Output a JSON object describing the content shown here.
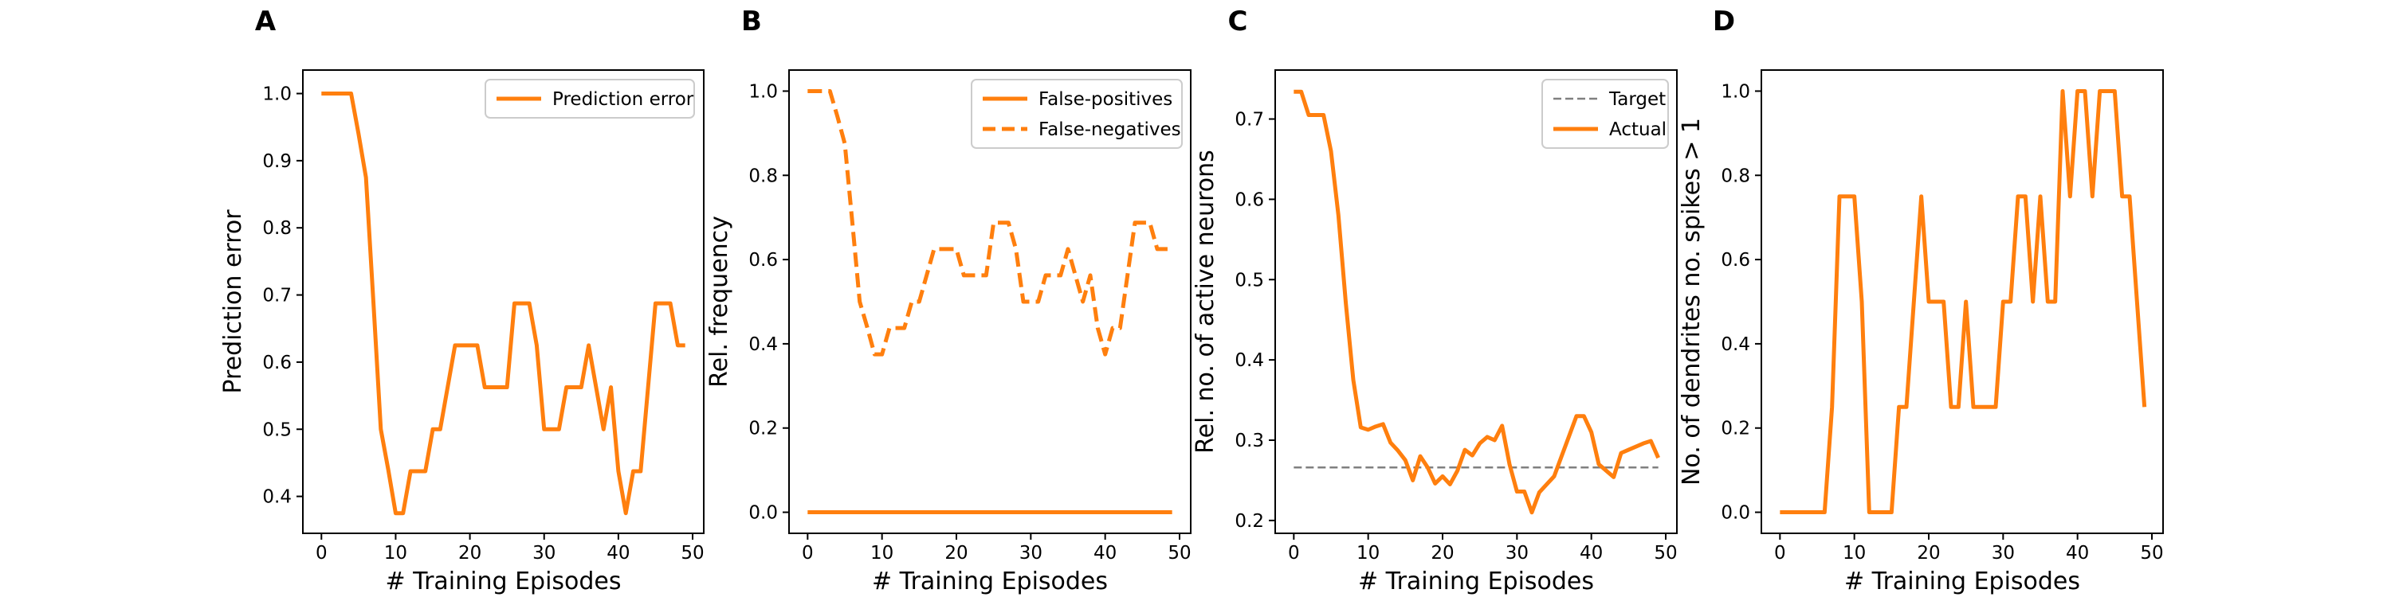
{
  "chart_data": [
    {
      "panel": "A",
      "type": "line",
      "xlabel": "# Training Episodes",
      "ylabel": "Prediction error",
      "xlim": [
        -2.5,
        51.5
      ],
      "ylim": [
        0.345,
        1.035
      ],
      "xticks": [
        0,
        10,
        20,
        30,
        40,
        50
      ],
      "xtick_labels": [
        "0",
        "10",
        "20",
        "30",
        "40",
        "50"
      ],
      "yticks": [
        0.4,
        0.5,
        0.6,
        0.7,
        0.8,
        0.9,
        1.0
      ],
      "ytick_labels": [
        "0.4",
        "0.5",
        "0.6",
        "0.7",
        "0.8",
        "0.9",
        "1.0"
      ],
      "legend_position": "upper right",
      "series": [
        {
          "name": "Prediction error",
          "color": "#ff7f0e",
          "style": "solid",
          "x": [
            0,
            1,
            2,
            3,
            4,
            5,
            6,
            7,
            8,
            9,
            10,
            11,
            12,
            13,
            14,
            15,
            16,
            17,
            18,
            19,
            20,
            21,
            22,
            23,
            24,
            25,
            26,
            27,
            28,
            29,
            30,
            31,
            32,
            33,
            34,
            35,
            36,
            37,
            38,
            39,
            40,
            41,
            42,
            43,
            44,
            45,
            46,
            47,
            48,
            49
          ],
          "y": [
            1.0,
            1.0,
            1.0,
            1.0,
            1.0,
            0.94,
            0.875,
            0.69,
            0.5,
            0.44,
            0.375,
            0.375,
            0.4375,
            0.4375,
            0.4375,
            0.5,
            0.5,
            0.5625,
            0.625,
            0.625,
            0.625,
            0.625,
            0.5625,
            0.5625,
            0.5625,
            0.5625,
            0.6875,
            0.6875,
            0.6875,
            0.625,
            0.5,
            0.5,
            0.5,
            0.5625,
            0.5625,
            0.5625,
            0.625,
            0.5625,
            0.5,
            0.5625,
            0.4375,
            0.375,
            0.4375,
            0.4375,
            0.5625,
            0.6875,
            0.6875,
            0.6875,
            0.625,
            0.625
          ]
        }
      ]
    },
    {
      "panel": "B",
      "type": "line",
      "xlabel": "# Training Episodes",
      "ylabel": "Rel. frequency",
      "xlim": [
        -2.5,
        51.5
      ],
      "ylim": [
        -0.05,
        1.05
      ],
      "xticks": [
        0,
        10,
        20,
        30,
        40,
        50
      ],
      "xtick_labels": [
        "0",
        "10",
        "20",
        "30",
        "40",
        "50"
      ],
      "yticks": [
        0.0,
        0.2,
        0.4,
        0.6,
        0.8,
        1.0
      ],
      "ytick_labels": [
        "0.0",
        "0.2",
        "0.4",
        "0.6",
        "0.8",
        "1.0"
      ],
      "legend_position": "upper right",
      "series": [
        {
          "name": "False-positives",
          "color": "#ff7f0e",
          "style": "solid",
          "x": [
            0,
            49
          ],
          "y": [
            0.0,
            0.0
          ]
        },
        {
          "name": "False-negatives",
          "color": "#ff7f0e",
          "style": "dashed",
          "x": [
            0,
            1,
            2,
            3,
            4,
            5,
            6,
            7,
            8,
            9,
            10,
            11,
            12,
            13,
            14,
            15,
            16,
            17,
            18,
            19,
            20,
            21,
            22,
            23,
            24,
            25,
            26,
            27,
            28,
            29,
            30,
            31,
            32,
            33,
            34,
            35,
            36,
            37,
            38,
            39,
            40,
            41,
            42,
            43,
            44,
            45,
            46,
            47,
            48,
            49
          ],
          "y": [
            1.0,
            1.0,
            1.0,
            1.0,
            0.94,
            0.875,
            0.69,
            0.5,
            0.44,
            0.375,
            0.375,
            0.4375,
            0.4375,
            0.4375,
            0.5,
            0.5,
            0.5625,
            0.625,
            0.625,
            0.625,
            0.625,
            0.5625,
            0.5625,
            0.5625,
            0.5625,
            0.6875,
            0.6875,
            0.6875,
            0.625,
            0.5,
            0.5,
            0.5,
            0.5625,
            0.5625,
            0.5625,
            0.625,
            0.5625,
            0.5,
            0.5625,
            0.4375,
            0.375,
            0.4375,
            0.4375,
            0.5625,
            0.6875,
            0.6875,
            0.6875,
            0.625,
            0.625,
            0.625
          ]
        }
      ]
    },
    {
      "panel": "C",
      "type": "line",
      "xlabel": "# Training Episodes",
      "ylabel": "Rel. no. of active neurons",
      "xlim": [
        -2.5,
        51.5
      ],
      "ylim": [
        0.184,
        0.761
      ],
      "xticks": [
        0,
        10,
        20,
        30,
        40,
        50
      ],
      "xtick_labels": [
        "0",
        "10",
        "20",
        "30",
        "40",
        "50"
      ],
      "yticks": [
        0.2,
        0.3,
        0.4,
        0.5,
        0.6,
        0.7
      ],
      "ytick_labels": [
        "0.2",
        "0.3",
        "0.4",
        "0.5",
        "0.6",
        "0.7"
      ],
      "legend_position": "upper right",
      "series": [
        {
          "name": "Target",
          "color": "#808080",
          "style": "dashed",
          "x": [
            0,
            49
          ],
          "y": [
            0.266,
            0.266
          ]
        },
        {
          "name": "Actual",
          "color": "#ff7f0e",
          "style": "solid",
          "x": [
            0,
            1,
            2,
            3,
            4,
            5,
            6,
            7,
            8,
            9,
            10,
            11,
            12,
            13,
            14,
            15,
            16,
            17,
            18,
            19,
            20,
            21,
            22,
            23,
            24,
            25,
            26,
            27,
            28,
            29,
            30,
            31,
            32,
            33,
            34,
            35,
            36,
            37,
            38,
            39,
            40,
            41,
            42,
            43,
            44,
            45,
            46,
            47,
            48,
            49
          ],
          "y": [
            0.734,
            0.734,
            0.705,
            0.705,
            0.705,
            0.66,
            0.58,
            0.47,
            0.375,
            0.316,
            0.313,
            0.317,
            0.32,
            0.297,
            0.287,
            0.275,
            0.25,
            0.28,
            0.266,
            0.246,
            0.255,
            0.245,
            0.262,
            0.288,
            0.281,
            0.296,
            0.304,
            0.3,
            0.318,
            0.27,
            0.236,
            0.236,
            0.21,
            0.235,
            0.245,
            0.255,
            0.28,
            0.305,
            0.33,
            0.33,
            0.31,
            0.27,
            0.262,
            0.254,
            0.284,
            0.288,
            0.292,
            0.296,
            0.299,
            0.278
          ]
        }
      ]
    },
    {
      "panel": "D",
      "type": "line",
      "xlabel": "# Training Episodes",
      "ylabel": "No. of dendrites no. spikes > 1",
      "xlim": [
        -2.5,
        51.5
      ],
      "ylim": [
        -0.05,
        1.05
      ],
      "xticks": [
        0,
        10,
        20,
        30,
        40,
        50
      ],
      "xtick_labels": [
        "0",
        "10",
        "20",
        "30",
        "40",
        "50"
      ],
      "yticks": [
        0.0,
        0.2,
        0.4,
        0.6,
        0.8,
        1.0
      ],
      "ytick_labels": [
        "0.0",
        "0.2",
        "0.4",
        "0.6",
        "0.8",
        "1.0"
      ],
      "legend_position": "",
      "series": [
        {
          "color": "#ff7f0e",
          "style": "solid",
          "x": [
            0,
            1,
            2,
            3,
            4,
            5,
            6,
            7,
            8,
            9,
            10,
            11,
            12,
            13,
            14,
            15,
            16,
            17,
            18,
            19,
            20,
            21,
            22,
            23,
            24,
            25,
            26,
            27,
            28,
            29,
            30,
            31,
            32,
            33,
            34,
            35,
            36,
            37,
            38,
            39,
            40,
            41,
            42,
            43,
            44,
            45,
            46,
            47,
            48,
            49
          ],
          "y": [
            0.0,
            0.0,
            0.0,
            0.0,
            0.0,
            0.0,
            0.0,
            0.25,
            0.75,
            0.75,
            0.75,
            0.5,
            0.0,
            0.0,
            0.0,
            0.0,
            0.25,
            0.25,
            0.5,
            0.75,
            0.5,
            0.5,
            0.5,
            0.25,
            0.25,
            0.5,
            0.25,
            0.25,
            0.25,
            0.25,
            0.5,
            0.5,
            0.75,
            0.75,
            0.5,
            0.75,
            0.5,
            0.5,
            1.0,
            0.75,
            1.0,
            1.0,
            0.75,
            1.0,
            1.0,
            1.0,
            0.75,
            0.75,
            0.5,
            0.25
          ]
        }
      ]
    }
  ]
}
